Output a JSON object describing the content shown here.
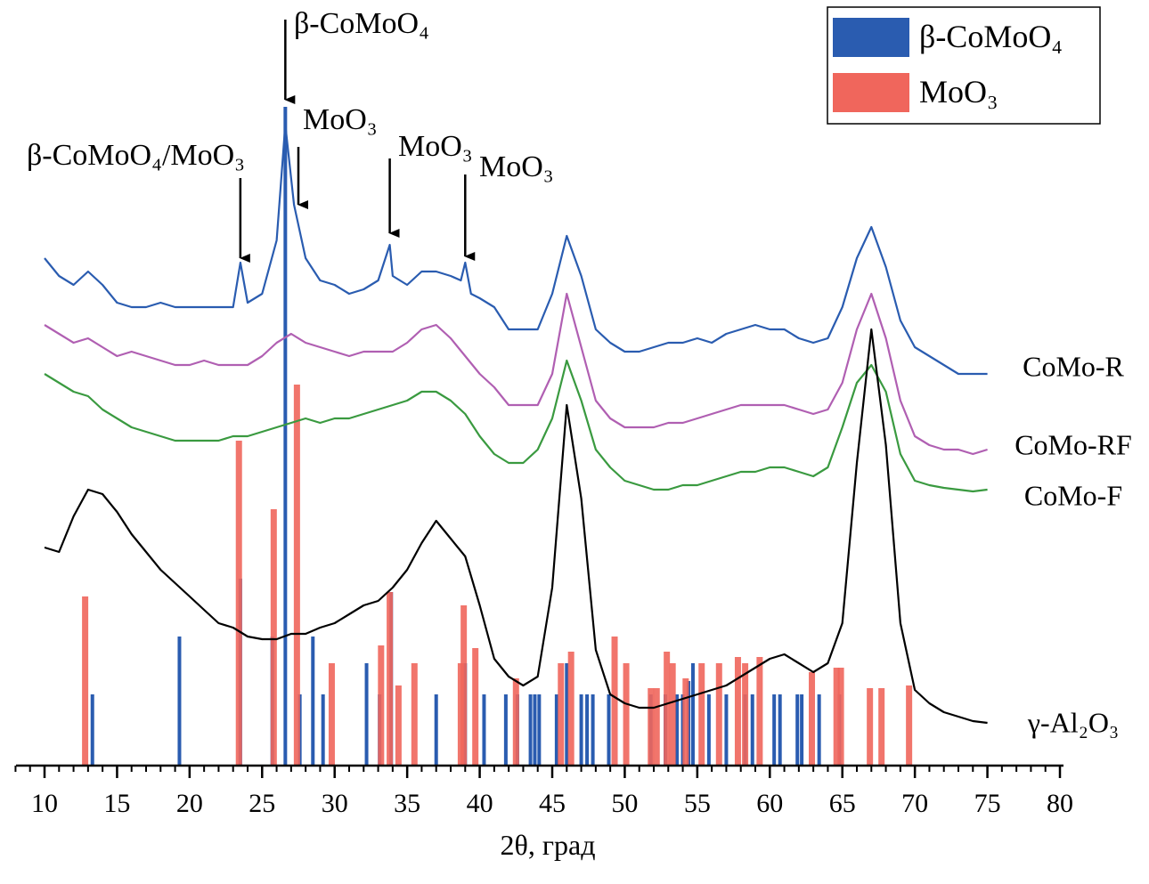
{
  "chart_data": {
    "type": "line",
    "xlabel": "2θ, град",
    "xlim": [
      8,
      80
    ],
    "xticks": [
      10,
      15,
      20,
      25,
      30,
      35,
      40,
      45,
      50,
      55,
      60,
      65,
      70,
      75,
      80
    ],
    "ylim": [
      0,
      86
    ],
    "series": [
      {
        "name": "CoMo-R",
        "type": "line",
        "color": "#2a5cb0",
        "x": [
          10,
          11,
          12,
          13,
          14,
          15,
          16,
          17,
          18,
          19,
          20,
          21,
          22,
          23,
          23.5,
          24,
          25,
          26,
          26.6,
          27.2,
          28,
          29,
          30,
          31,
          32,
          33,
          33.8,
          34,
          35,
          36,
          37,
          38,
          38.7,
          39,
          39.4,
          40,
          41,
          42,
          43,
          44,
          45,
          46,
          47,
          48,
          49,
          50,
          51,
          52,
          53,
          54,
          55,
          56,
          57,
          58,
          59,
          60,
          61,
          62,
          63,
          64,
          65,
          66,
          67,
          68,
          69,
          70,
          71,
          72,
          73,
          74,
          75
        ],
        "values": [
          57,
          55,
          54,
          55.5,
          54,
          52,
          51.5,
          51.5,
          52,
          51.5,
          51.5,
          51.5,
          51.5,
          51.5,
          56.5,
          52,
          53,
          59,
          72,
          63,
          57,
          54.5,
          54,
          53,
          53.5,
          54.5,
          58.5,
          55,
          54,
          55.5,
          55.5,
          55,
          54.5,
          56.5,
          53,
          52.5,
          51.5,
          49,
          49,
          49,
          53,
          59.5,
          55,
          49,
          47.5,
          46.5,
          46.5,
          47,
          47.5,
          47.5,
          48,
          47.5,
          48.5,
          49,
          49.5,
          49,
          49,
          48,
          47.5,
          48,
          51.5,
          57,
          60.5,
          56,
          50,
          47,
          46,
          45,
          44,
          44,
          44
        ]
      },
      {
        "name": "CoMo-RF",
        "type": "line",
        "color": "#b05fb2",
        "x": [
          10,
          11,
          12,
          13,
          14,
          15,
          16,
          17,
          18,
          19,
          20,
          21,
          22,
          23,
          24,
          25,
          26,
          27,
          28,
          29,
          30,
          31,
          32,
          33,
          34,
          35,
          36,
          37,
          38,
          39,
          40,
          41,
          42,
          43,
          44,
          45,
          46,
          47,
          48,
          49,
          50,
          51,
          52,
          53,
          54,
          55,
          56,
          57,
          58,
          59,
          60,
          61,
          62,
          63,
          64,
          65,
          66,
          67,
          68,
          69,
          70,
          71,
          72,
          73,
          74,
          75
        ],
        "values": [
          49.5,
          48.5,
          47.5,
          48,
          47,
          46,
          46.5,
          46,
          45.5,
          45,
          45,
          45.5,
          45,
          45,
          45,
          46,
          47.5,
          48.5,
          47.5,
          47,
          46.5,
          46,
          46.5,
          46.5,
          46.5,
          47.5,
          49,
          49.5,
          48,
          46,
          44,
          42.5,
          40.5,
          40.5,
          40.5,
          44,
          53,
          47,
          41,
          39,
          38,
          38,
          38,
          38.5,
          38.5,
          39,
          39.5,
          40,
          40.5,
          40.5,
          40.5,
          40.5,
          40,
          39.5,
          40,
          43,
          49,
          53,
          48,
          41,
          37,
          36,
          35.5,
          35.5,
          35,
          35.5
        ]
      },
      {
        "name": "CoMo-F",
        "type": "line",
        "color": "#3a9a40",
        "x": [
          10,
          11,
          12,
          13,
          14,
          15,
          16,
          17,
          18,
          19,
          20,
          21,
          22,
          23,
          24,
          25,
          26,
          27,
          28,
          29,
          30,
          31,
          32,
          33,
          34,
          35,
          36,
          37,
          38,
          39,
          40,
          41,
          42,
          43,
          44,
          45,
          46,
          47,
          48,
          49,
          50,
          51,
          52,
          53,
          54,
          55,
          56,
          57,
          58,
          59,
          60,
          61,
          62,
          63,
          64,
          65,
          66,
          67,
          68,
          69,
          70,
          71,
          72,
          73,
          74,
          75
        ],
        "values": [
          44,
          43,
          42,
          41.5,
          40,
          39,
          38,
          37.5,
          37,
          36.5,
          36.5,
          36.5,
          36.5,
          37,
          37,
          37.5,
          38,
          38.5,
          39,
          38.5,
          39,
          39,
          39.5,
          40,
          40.5,
          41,
          42,
          42,
          41,
          39.5,
          37,
          35,
          34,
          34,
          35.5,
          39,
          45.5,
          41,
          35.5,
          33.5,
          32,
          31.5,
          31,
          31,
          31.5,
          31.5,
          32,
          32.5,
          33,
          33,
          33.5,
          33.5,
          33,
          32.5,
          33.5,
          38,
          43,
          45,
          42,
          35,
          32,
          31.5,
          31.2,
          31,
          30.8,
          31
        ]
      },
      {
        "name": "γ-Al₂O₃",
        "type": "line",
        "color": "#000000",
        "x": [
          10,
          11,
          12,
          13,
          14,
          15,
          16,
          17,
          18,
          19,
          20,
          21,
          22,
          23,
          24,
          25,
          26,
          27,
          28,
          29,
          30,
          31,
          32,
          33,
          34,
          35,
          36,
          37,
          38,
          39,
          40,
          41,
          42,
          43,
          44,
          45,
          46,
          47,
          48,
          49,
          50,
          51,
          52,
          53,
          54,
          55,
          56,
          57,
          58,
          59,
          60,
          61,
          62,
          63,
          64,
          65,
          66,
          67,
          68,
          69,
          70,
          71,
          72,
          73,
          74,
          75
        ],
        "values": [
          24.5,
          24,
          28,
          31,
          30.5,
          28.5,
          26,
          24,
          22,
          20.5,
          19,
          17.5,
          16,
          15.5,
          14.5,
          14.2,
          14.2,
          14.8,
          14.8,
          15.5,
          16,
          17,
          18,
          18.5,
          20,
          22,
          25,
          27.5,
          25.5,
          23.5,
          18,
          12,
          10,
          9,
          10,
          20,
          40.5,
          30,
          13,
          8,
          7,
          6.5,
          6.5,
          7,
          7.5,
          8,
          8.5,
          9,
          10,
          11,
          12,
          12.5,
          11.5,
          10.5,
          11.5,
          16,
          34,
          49,
          36,
          16,
          8.5,
          7,
          6,
          5.5,
          5,
          4.8
        ]
      },
      {
        "name": "β-CoMoO₄",
        "type": "stick",
        "color": "#2a5cb0",
        "x": [
          13.3,
          19.3,
          23.5,
          25.7,
          26.6,
          27.6,
          28.5,
          29.2,
          32.2,
          33.1,
          33.9,
          37.0,
          39.0,
          40.3,
          41.8,
          42.6,
          43.5,
          43.8,
          44.1,
          45.3,
          46.0,
          47.0,
          47.4,
          47.8,
          48.9,
          51.8,
          52.8,
          53.6,
          54.0,
          54.4,
          54.7,
          55.8,
          57.0,
          58.3,
          58.8,
          60.3,
          60.7,
          61.9,
          62.2,
          63.4,
          64.8
        ],
        "values": [
          8,
          14.5,
          21,
          14.5,
          74,
          8,
          14.5,
          8,
          11.5,
          8,
          19.5,
          8,
          11.5,
          8,
          8,
          8,
          8,
          8,
          8,
          8,
          11.5,
          8,
          8,
          8,
          8,
          8,
          8,
          8,
          8,
          9.5,
          11.5,
          8,
          8,
          8,
          8,
          8,
          8,
          8,
          8,
          8,
          8
        ]
      },
      {
        "name": "MoO₃",
        "type": "stick",
        "color": "#f0665c",
        "x": [
          12.8,
          23.4,
          25.8,
          27.4,
          29.8,
          33.2,
          33.8,
          34.4,
          35.5,
          38.7,
          38.9,
          39.7,
          42.5,
          45.6,
          46.3,
          49.3,
          50.1,
          51.8,
          52.2,
          52.9,
          53.3,
          54.2,
          55.3,
          56.5,
          57.8,
          58.3,
          59.3,
          62.9,
          64.6,
          64.9,
          66.9,
          67.7,
          69.6
        ],
        "values": [
          19,
          36.5,
          28.8,
          42.8,
          11.5,
          13.5,
          19.5,
          9,
          11.5,
          11.5,
          18,
          13.2,
          9.8,
          11.5,
          12.8,
          14.5,
          11.5,
          8.7,
          8.7,
          12.8,
          11.5,
          9.8,
          11.5,
          11.5,
          12.2,
          11.5,
          12.2,
          10.5,
          11,
          11,
          8.7,
          8.7,
          9
        ]
      }
    ],
    "annotations": [
      {
        "text": "β-CoMoO₄",
        "x": 26.6
      },
      {
        "text": "MoO₃",
        "x": 27.5
      },
      {
        "text": "β-CoMoO₄/MoO₃",
        "x": 23.5
      },
      {
        "text": "MoO₃",
        "x": 33.8
      },
      {
        "text": "MoO₃",
        "x": 39.0
      }
    ],
    "legend": "upper right"
  }
}
